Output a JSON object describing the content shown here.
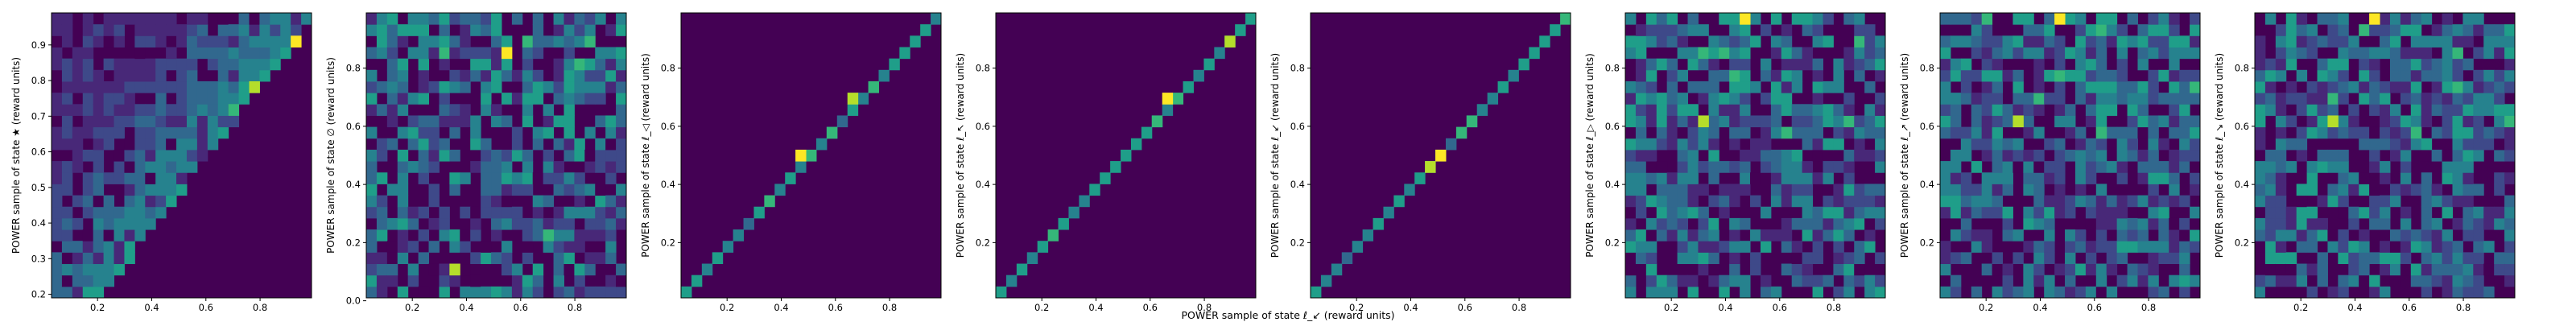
{
  "figure": {
    "xlabel": "POWER sample of state ℓ_↙ (reward units)"
  },
  "chart_data": [
    {
      "type": "heatmap",
      "pattern": "upper-triangle",
      "ylabel": "POWER sample of state ★ (reward units)",
      "xlim": [
        0.03,
        0.99
      ],
      "ylim": [
        0.19,
        0.99
      ],
      "xticks": [
        0.2,
        0.4,
        0.6,
        0.8
      ],
      "yticks": [
        0.2,
        0.3,
        0.4,
        0.5,
        0.6,
        0.7,
        0.8,
        0.9
      ],
      "highlights": [
        {
          "x": 0.93,
          "y": 0.915
        },
        {
          "x": 0.78,
          "y": 0.77
        },
        {
          "x": 0.72,
          "y": 0.73
        }
      ]
    },
    {
      "type": "heatmap",
      "pattern": "scatter",
      "ylabel": "POWER sample of state ∅ (reward units)",
      "xlim": [
        0.03,
        0.99
      ],
      "ylim": [
        0.01,
        0.99
      ],
      "xticks": [
        0.2,
        0.4,
        0.6,
        0.8
      ],
      "yticks": [
        0.0,
        0.2,
        0.4,
        0.6,
        0.8
      ],
      "highlights": [
        {
          "x": 0.53,
          "y": 0.87
        },
        {
          "x": 0.37,
          "y": 0.1
        },
        {
          "x": 0.72,
          "y": 0.22
        }
      ]
    },
    {
      "type": "heatmap",
      "pattern": "diagonal",
      "ylabel": "POWER sample of state ℓ_◁ (reward units)",
      "xlim": [
        0.03,
        0.99
      ],
      "ylim": [
        0.01,
        0.99
      ],
      "xticks": [
        0.2,
        0.4,
        0.6,
        0.8
      ],
      "yticks": [
        0.2,
        0.4,
        0.6,
        0.8
      ],
      "highlights": [
        {
          "x": 0.49,
          "y": 0.49
        },
        {
          "x": 0.68,
          "y": 0.68
        },
        {
          "x": 0.59,
          "y": 0.59
        }
      ]
    },
    {
      "type": "heatmap",
      "pattern": "diagonal",
      "ylabel": "POWER sample of state ℓ_↖ (reward units)",
      "xlim": [
        0.03,
        0.99
      ],
      "ylim": [
        0.01,
        0.99
      ],
      "xticks": [
        0.2,
        0.4,
        0.6,
        0.8
      ],
      "yticks": [
        0.2,
        0.4,
        0.6,
        0.8
      ],
      "highlights": [
        {
          "x": 0.68,
          "y": 0.68
        },
        {
          "x": 0.88,
          "y": 0.88
        },
        {
          "x": 0.63,
          "y": 0.63
        }
      ]
    },
    {
      "type": "heatmap",
      "pattern": "diagonal",
      "ylabel": "POWER sample of state ℓ_↙ (reward units)",
      "xlim": [
        0.03,
        0.99
      ],
      "ylim": [
        0.01,
        0.99
      ],
      "xticks": [
        0.2,
        0.4,
        0.6,
        0.8
      ],
      "yticks": [
        0.2,
        0.4,
        0.6,
        0.8
      ],
      "highlights": [
        {
          "x": 0.5,
          "y": 0.5
        },
        {
          "x": 0.46,
          "y": 0.46
        },
        {
          "x": 0.63,
          "y": 0.63
        }
      ]
    },
    {
      "type": "heatmap",
      "pattern": "scatter",
      "ylabel": "POWER sample of state ℓ_▷ (reward units)",
      "xlim": [
        0.03,
        0.99
      ],
      "ylim": [
        0.01,
        0.99
      ],
      "xticks": [
        0.2,
        0.4,
        0.6,
        0.8
      ],
      "yticks": [
        0.2,
        0.4,
        0.6,
        0.8
      ],
      "highlights": [
        {
          "x": 0.49,
          "y": 0.96
        },
        {
          "x": 0.3,
          "y": 0.6
        },
        {
          "x": 0.63,
          "y": 0.58
        }
      ]
    },
    {
      "type": "heatmap",
      "pattern": "scatter",
      "ylabel": "POWER sample of state ℓ_↗ (reward units)",
      "xlim": [
        0.03,
        0.99
      ],
      "ylim": [
        0.01,
        0.99
      ],
      "xticks": [
        0.2,
        0.4,
        0.6,
        0.8
      ],
      "yticks": [
        0.2,
        0.4,
        0.6,
        0.8
      ],
      "highlights": [
        {
          "x": 0.49,
          "y": 0.96
        },
        {
          "x": 0.3,
          "y": 0.6
        },
        {
          "x": 0.63,
          "y": 0.58
        }
      ]
    },
    {
      "type": "heatmap",
      "pattern": "scatter",
      "ylabel": "POWER sample of state ℓ_↘ (reward units)",
      "xlim": [
        0.03,
        0.99
      ],
      "ylim": [
        0.01,
        0.99
      ],
      "xticks": [
        0.2,
        0.4,
        0.6,
        0.8
      ],
      "yticks": [
        0.2,
        0.4,
        0.6,
        0.8
      ],
      "highlights": [
        {
          "x": 0.49,
          "y": 0.96
        },
        {
          "x": 0.3,
          "y": 0.6
        },
        {
          "x": 0.63,
          "y": 0.58
        }
      ]
    }
  ],
  "colors": {
    "viridis": [
      "#440154",
      "#482878",
      "#3e4989",
      "#31688e",
      "#26828e",
      "#1f9e89",
      "#35b779",
      "#6ece58",
      "#b5de2b",
      "#fde725"
    ],
    "background": "#440154",
    "axis": "#000000"
  }
}
